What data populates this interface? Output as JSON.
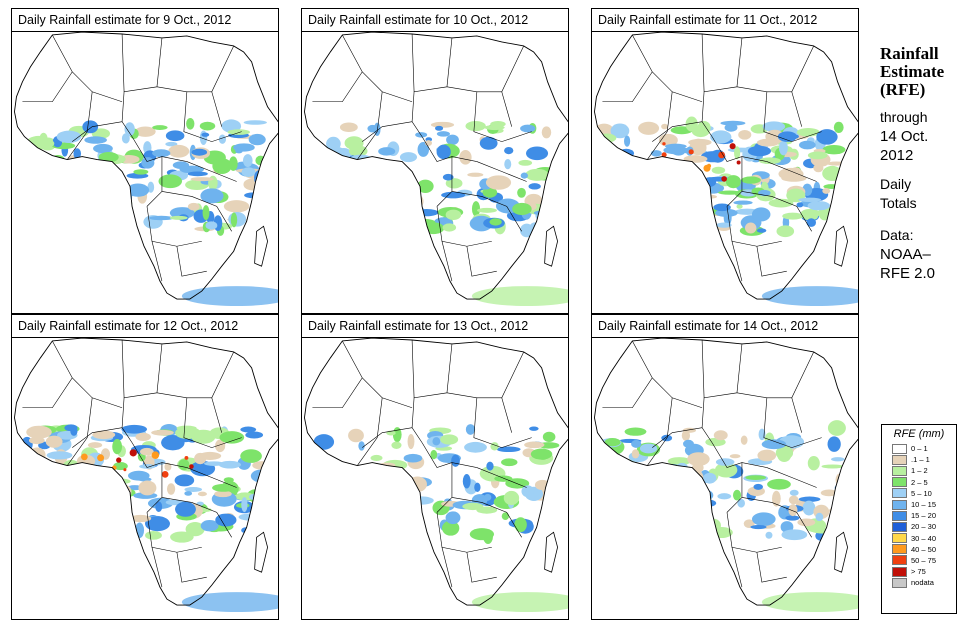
{
  "panels": [
    {
      "title": "Daily Rainfall estimate for  9 Oct., 2012",
      "intensity": 2
    },
    {
      "title": "Daily Rainfall estimate for  10 Oct., 2012",
      "intensity": 1
    },
    {
      "title": "Daily Rainfall estimate for  11 Oct., 2012",
      "intensity": 3
    },
    {
      "title": "Daily Rainfall estimate for  12 Oct., 2012",
      "intensity": 3
    },
    {
      "title": "Daily Rainfall estimate for  13 Oct., 2012",
      "intensity": 1
    },
    {
      "title": "Daily Rainfall estimate for  14 Oct., 2012",
      "intensity": 1
    }
  ],
  "side": {
    "h1": "Rainfall",
    "h2": "Estimate",
    "h3": "(RFE)",
    "t1": "through",
    "t2": "14 Oct.",
    "t3": "2012",
    "t4": "Daily",
    "t5": "Totals",
    "t6": "Data:",
    "t7": "NOAA–",
    "t8": "RFE 2.0"
  },
  "legend": {
    "title": "RFE (mm)",
    "items": [
      {
        "label": "0 – 1",
        "color": "#ffffff"
      },
      {
        "label": ".1 – 1",
        "color": "#e6d3b9"
      },
      {
        "label": "1 – 2",
        "color": "#b8f0a0"
      },
      {
        "label": "2 – 5",
        "color": "#7ee36a"
      },
      {
        "label": "5 – 10",
        "color": "#9ed0f5"
      },
      {
        "label": "10 – 15",
        "color": "#6fb3ee"
      },
      {
        "label": "15 – 20",
        "color": "#3f8de6"
      },
      {
        "label": "20 – 30",
        "color": "#1f5fd8"
      },
      {
        "label": "30 – 40",
        "color": "#ffd84a"
      },
      {
        "label": "40 – 50",
        "color": "#ff9a1e"
      },
      {
        "label": "50 – 75",
        "color": "#f04010"
      },
      {
        "label": "> 75",
        "color": "#c01008"
      },
      {
        "label": "nodata",
        "color": "#c8c8c8"
      }
    ]
  }
}
